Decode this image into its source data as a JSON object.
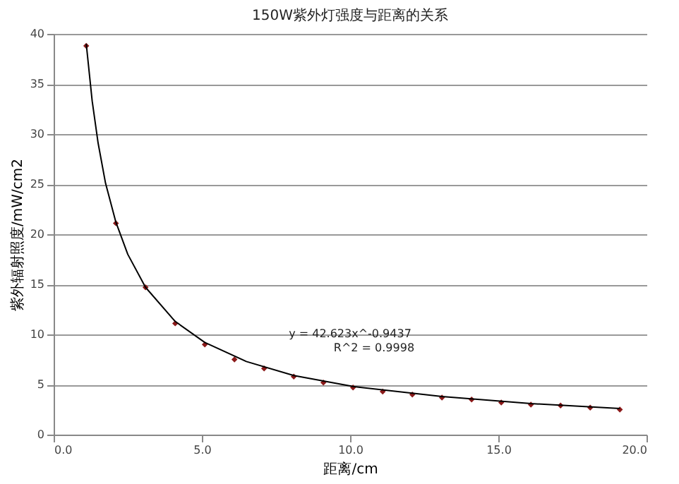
{
  "chart_data": {
    "type": "scatter",
    "title": "150W紫外灯强度与距离的关系",
    "xlabel": "距离/cm",
    "ylabel": "紫外辐射照度/mW/cm2",
    "annotations": [
      "y = 42.623x^-0.9437",
      "R^2 = 0.9998"
    ],
    "series": [
      {
        "type": "scatter",
        "color": "#8b1a1a",
        "marker": "diamond",
        "x": [
          1.1,
          2.1,
          3.1,
          4.1,
          5.1,
          6.1,
          7.1,
          8.1,
          9.1,
          10.1,
          11.1,
          12.1,
          13.1,
          14.1,
          15.1,
          16.1,
          17.1,
          18.1,
          19.1
        ],
        "values": [
          38.8,
          21.1,
          14.7,
          11.1,
          9.0,
          7.5,
          6.6,
          5.8,
          5.2,
          4.7,
          4.3,
          4.0,
          3.7,
          3.5,
          3.2,
          3.0,
          2.9,
          2.7,
          2.5
        ]
      },
      {
        "type": "line",
        "color": "#000000",
        "marker": "none",
        "x": [
          1.1,
          1.3,
          1.5,
          1.75,
          2.1,
          2.5,
          3.1,
          4.1,
          5.1,
          6.5,
          8.1,
          10.1,
          13.1,
          16.1,
          19.1
        ],
        "values": [
          39.0,
          33.3,
          29.1,
          25.1,
          21.2,
          18.0,
          14.7,
          11.3,
          9.2,
          7.3,
          5.9,
          4.8,
          3.8,
          3.1,
          2.6
        ]
      }
    ],
    "xlim": [
      0,
      20
    ],
    "xticks": [
      {
        "value": 0,
        "label": "0.0"
      },
      {
        "value": 5,
        "label": "5.0"
      },
      {
        "value": 10,
        "label": "10.0"
      },
      {
        "value": 15,
        "label": "15.0"
      },
      {
        "value": 20,
        "label": "20.0"
      }
    ],
    "ylim": [
      0,
      40
    ],
    "yticks": [
      0,
      5,
      10,
      15,
      20,
      25,
      30,
      35,
      40
    ],
    "grid": "y"
  }
}
